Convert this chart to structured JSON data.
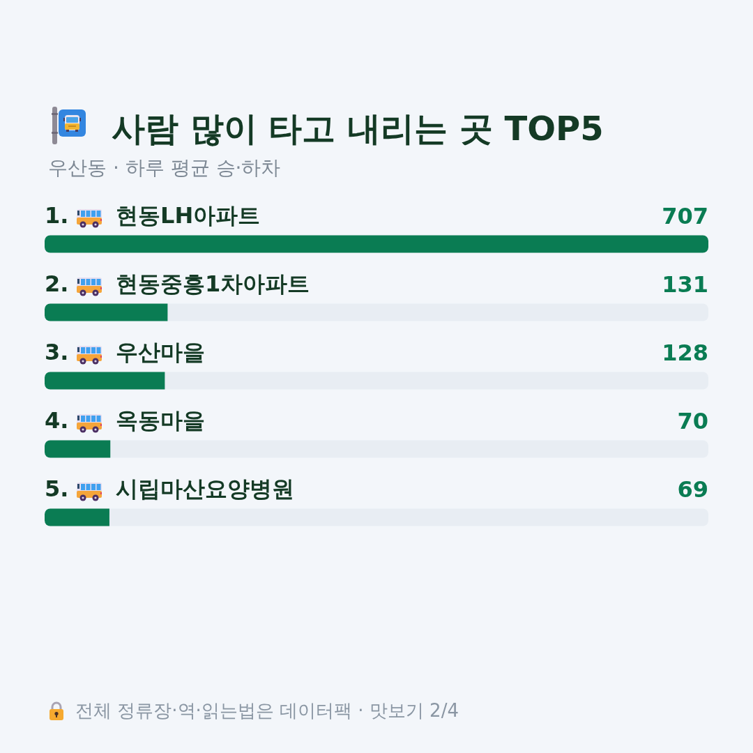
{
  "chart_data": {
    "type": "bar",
    "orientation": "horizontal",
    "title": "사람 많이 타고 내리는 곳 TOP5",
    "subtitle": "우산동 · 하루 평균 승·하차",
    "categories": [
      "1. 현동LH아파트",
      "2. 현동중흥1차아파트",
      "3. 우산마을",
      "4. 옥동마을",
      "5. 시립마산요양병원"
    ],
    "values": [
      707,
      131,
      128,
      70,
      69
    ],
    "color": "#0a7c53",
    "data_labels": true,
    "tick_labels": "y",
    "annotations": [
      "전체 정류장·역·읽는법은 데이터팩 · 맛보기 2/4"
    ]
  }
}
